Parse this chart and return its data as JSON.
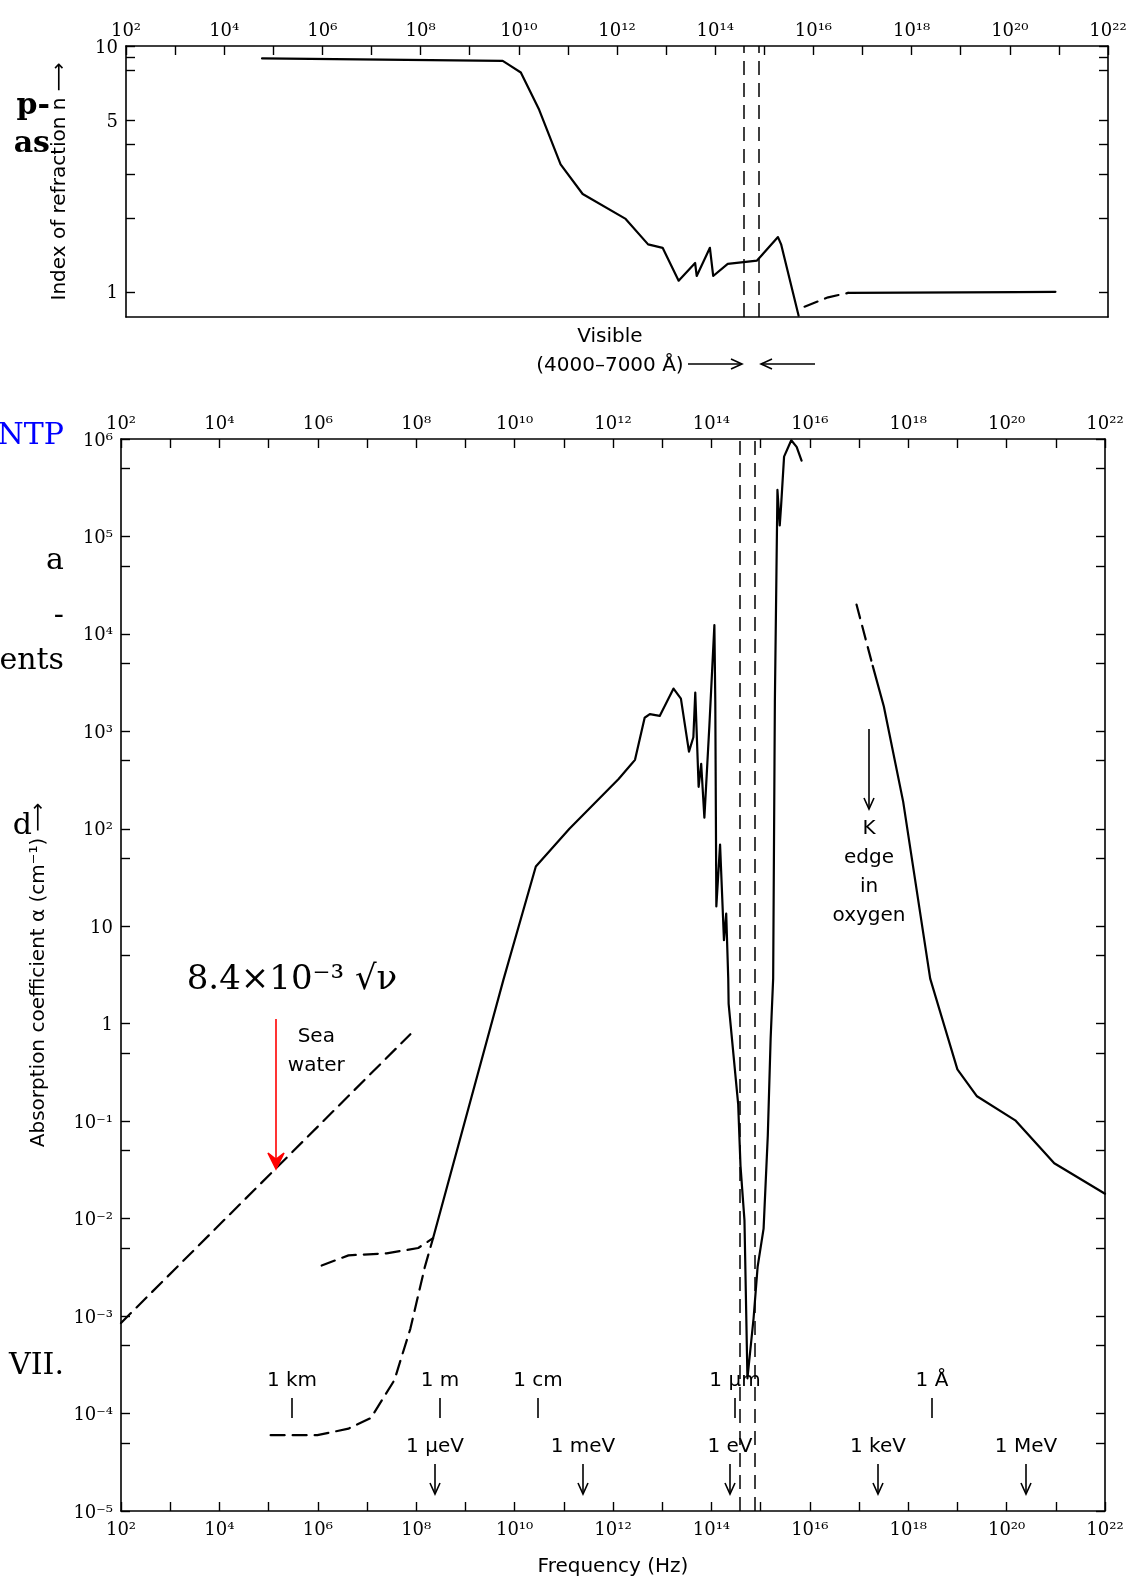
{
  "chart_data": [
    {
      "type": "line",
      "ylabel": "Index of refraction n ⟶",
      "log": "xy",
      "grid": false,
      "marker": "none",
      "xlim": [
        100,
        1e+22
      ],
      "xticks": [
        {
          "value": 100.0,
          "label": "10²"
        },
        {
          "value": 1000.0,
          "label": null
        },
        {
          "value": 10000.0,
          "label": "10⁴"
        },
        {
          "value": 100000.0,
          "label": null
        },
        {
          "value": 1000000.0,
          "label": "10⁶"
        },
        {
          "value": 10000000.0,
          "label": null
        },
        {
          "value": 100000000.0,
          "label": "10⁸"
        },
        {
          "value": 1000000000.0,
          "label": null
        },
        {
          "value": 10000000000.0,
          "label": "10¹⁰"
        },
        {
          "value": 100000000000.0,
          "label": null
        },
        {
          "value": 1000000000000.0,
          "label": "10¹²"
        },
        {
          "value": 10000000000000.0,
          "label": null
        },
        {
          "value": 100000000000000.0,
          "label": "10¹⁴"
        },
        {
          "value": 1000000000000000.0,
          "label": null
        },
        {
          "value": 1e+16,
          "label": "10¹⁶"
        },
        {
          "value": 1e+17,
          "label": null
        },
        {
          "value": 1e+18,
          "label": "10¹⁸"
        },
        {
          "value": 1e+19,
          "label": null
        },
        {
          "value": 1e+20,
          "label": "10²⁰"
        },
        {
          "value": 1e+21,
          "label": null
        },
        {
          "value": 1e+22,
          "label": "10²²"
        }
      ],
      "ylim": [
        0.79,
        10
      ],
      "yticks": [
        1,
        {
          "value": 2,
          "label": null
        },
        {
          "value": 3,
          "label": null
        },
        {
          "value": 4,
          "label": null
        },
        5,
        {
          "value": 8,
          "label": null
        },
        {
          "value": 9,
          "label": null
        },
        10
      ],
      "series": [
        {
          "color": "#000000",
          "line_style": "solid",
          "x": [
            59000.0,
            4700000000.0,
            11000000000.0,
            26000000000.0,
            71000000000.0,
            200000000000.0,
            1500000000000.0,
            4300000000000.0,
            8500000000000.0,
            18000000000000.0,
            39000000000000.0,
            42000000000000.0,
            78000000000000.0,
            91000000000000.0,
            180000000000000.0,
            710000000000000.0,
            1900000000000000.0,
            2200000000000000.0,
            5000000000000000.0
          ],
          "values": [
            8.9,
            8.7,
            7.8,
            5.5,
            3.3,
            2.5,
            1.98,
            1.56,
            1.51,
            1.11,
            1.31,
            1.16,
            1.51,
            1.16,
            1.3,
            1.34,
            1.67,
            1.56,
            0.8
          ]
        },
        {
          "color": "#000000",
          "line_style": "dashed",
          "x": [
            6600000000000000.0,
            2e+16,
            5.1e+16
          ],
          "values": [
            0.87,
            0.95,
            0.99
          ]
        },
        {
          "color": "#000000",
          "line_style": "solid",
          "x": [
            5.1e+16,
            8.5e+20
          ],
          "values": [
            0.99,
            1.0
          ]
        }
      ],
      "ref_lines": [
        {
          "axis": "x",
          "value": 380000000000000.0,
          "label": null,
          "color": "#000000",
          "line_style": "dashed"
        },
        {
          "axis": "x",
          "value": 770000000000000.0,
          "label": null,
          "color": "#000000",
          "line_style": "dashed"
        }
      ],
      "annotations": [
        "Visible\n(4000–7000 Å)",
        "p-\nas"
      ]
    },
    {
      "type": "line",
      "xlabel": "Frequency (Hz)",
      "ylabel": "Absorption coefficient α (cm⁻¹) ⟶",
      "log": "xy",
      "grid": false,
      "marker": "none",
      "xlim": [
        100,
        1e+22
      ],
      "xticks": [
        {
          "value": 100.0,
          "label": "10²"
        },
        {
          "value": 1000.0,
          "label": null
        },
        {
          "value": 10000.0,
          "label": "10⁴"
        },
        {
          "value": 100000.0,
          "label": null
        },
        {
          "value": 1000000.0,
          "label": "10⁶"
        },
        {
          "value": 10000000.0,
          "label": null
        },
        {
          "value": 100000000.0,
          "label": "10⁸"
        },
        {
          "value": 1000000000.0,
          "label": null
        },
        {
          "value": 10000000000.0,
          "label": "10¹⁰"
        },
        {
          "value": 100000000000.0,
          "label": null
        },
        {
          "value": 1000000000000.0,
          "label": "10¹²"
        },
        {
          "value": 10000000000000.0,
          "label": null
        },
        {
          "value": 100000000000000.0,
          "label": "10¹⁴"
        },
        {
          "value": 1000000000000000.0,
          "label": null
        },
        {
          "value": 1e+16,
          "label": "10¹⁶"
        },
        {
          "value": 1e+17,
          "label": null
        },
        {
          "value": 1e+18,
          "label": "10¹⁸"
        },
        {
          "value": 1e+19,
          "label": null
        },
        {
          "value": 1e+20,
          "label": "10²⁰"
        },
        {
          "value": 1e+21,
          "label": null
        },
        {
          "value": 1e+22,
          "label": "10²²"
        }
      ],
      "ylim": [
        1e-05,
        1000000.0
      ],
      "yticks": [
        {
          "value": 1e-05,
          "label": "10⁻⁵"
        },
        {
          "value": 5e-05,
          "label": null
        },
        {
          "value": 0.0001,
          "label": "10⁻⁴"
        },
        {
          "value": 0.0005,
          "label": null
        },
        {
          "value": 0.001,
          "label": "10⁻³"
        },
        {
          "value": 0.005,
          "label": null
        },
        {
          "value": 0.01,
          "label": "10⁻²"
        },
        {
          "value": 0.05,
          "label": null
        },
        {
          "value": 0.1,
          "label": "10⁻¹"
        },
        {
          "value": 0.5,
          "label": null
        },
        1,
        {
          "value": 5,
          "label": null
        },
        10,
        {
          "value": 50,
          "label": null
        },
        {
          "value": 100.0,
          "label": "10²"
        },
        {
          "value": 500.0,
          "label": null
        },
        {
          "value": 1000.0,
          "label": "10³"
        },
        {
          "value": 5000.0,
          "label": null
        },
        {
          "value": 10000.0,
          "label": "10⁴"
        },
        {
          "value": 50000.0,
          "label": null
        },
        {
          "value": 100000.0,
          "label": "10⁵"
        },
        {
          "value": 500000.0,
          "label": null
        },
        {
          "value": 1000000.0,
          "label": "10⁶"
        }
      ],
      "series": [
        {
          "color": "#000000",
          "line_style": "dashed",
          "x": [
            100.0,
            76000000.0
          ],
          "values": [
            0.00085,
            0.78
          ]
        },
        {
          "color": "#000000",
          "line_style": "dashed",
          "x": [
            1200000.0,
            4200000.0,
            25000000.0,
            110000000.0,
            220000000.0
          ],
          "values": [
            0.0033,
            0.0042,
            0.0044,
            0.005,
            0.0063
          ]
        },
        {
          "color": "#000000",
          "line_style": "dashed",
          "x": [
            110000.0,
            980000.0,
            4200000.0,
            12000000.0,
            36000000.0,
            76000000.0,
            150000000.0,
            220000000.0
          ],
          "values": [
            6e-05,
            6e-05,
            7e-05,
            9e-05,
            0.00022,
            0.00074,
            0.0032,
            0.0063
          ]
        },
        {
          "color": "#000000",
          "line_style": "solid",
          "x": [
            220000000.0,
            5900000000.0,
            27000000000.0,
            130000000000.0,
            1300000000000.0,
            2800000000000.0,
            4400000000000.0,
            5600000000000.0,
            8900000000000.0,
            17000000000000.0,
            24000000000000.0,
            35000000000000.0,
            43000000000000.0,
            47000000000000.0,
            55000000000000.0,
            62000000000000.0,
            72000000000000.0,
            91000000000000.0,
            115000000000000.0,
            120000000000000.0,
            126000000000000.0,
            150000000000000.0,
            180000000000000.0,
            200000000000000.0,
            220000000000000.0,
            224000000000000.0,
            350000000000000.0,
            390000000000000.0,
            470000000000000.0,
            540000000000000.0,
            720000000000000.0,
            870000000000000.0,
            1150000000000000.0,
            1400000000000000.0,
            1600000000000000.0,
            1800000000000000.0,
            1950000000000000.0,
            2100000000000000.0,
            2200000000000000.0,
            2450000000000000.0,
            2600000000000000.0,
            3000000000000000.0,
            4200000000000000.0,
            5400000000000000.0,
            6800000000000000.0
          ],
          "values": [
            0.0063,
            2.8,
            41,
            100,
            325,
            510,
            1380,
            1500,
            1440,
            2750,
            2170,
            620,
            870,
            2500,
            270,
            465,
            130,
            1150,
            12300,
            2000,
            16,
            69,
            7.2,
            13.5,
            2.9,
            1.6,
            0.15,
            0.035,
            0.0096,
            0.00023,
            0.00095,
            0.0032,
            0.0079,
            0.071,
            0.71,
            2.9,
            2000,
            43600,
            300000.0,
            130000.0,
            200000.0,
            660000.0,
            970000.0,
            830000.0,
            600000.0
          ]
        },
        {
          "color": "#000000",
          "line_style": "dashed",
          "x": [
            8.9e+16,
            1.9e+17
          ],
          "values": [
            20000.0,
            4700
          ]
        },
        {
          "color": "#000000",
          "line_style": "solid",
          "x": [
            1.9e+17,
            3.2e+17,
            7.9e+17,
            2.8e+18,
            1e+19,
            2.5e+19,
            1.5e+20,
            9.3e+20,
            1e+22
          ],
          "values": [
            4700,
            1800,
            190,
            2.9,
            0.34,
            0.18,
            0.102,
            0.037,
            0.018
          ]
        }
      ],
      "ref_lines": [
        {
          "axis": "x",
          "value": 380000000000000.0,
          "label": null,
          "color": "#000000",
          "line_style": "dashed"
        },
        {
          "axis": "x",
          "value": 770000000000000.0,
          "label": null,
          "color": "#000000",
          "line_style": "dashed"
        }
      ],
      "annotations": [
        "8.4×10⁻³ √ν",
        {
          "text": "Sea\nwater",
          "x": 140000.0,
          "y": 0.032
        },
        "K\nedge\nin\noxygen",
        "1 km",
        "1 m",
        "1 cm",
        "1 μm",
        "1 Å",
        "1 μeV",
        "1 meV",
        "1 eV",
        "1 keV",
        "1 MeV",
        "NTP",
        "a",
        "-",
        "ents",
        "d",
        "VII."
      ]
    }
  ]
}
